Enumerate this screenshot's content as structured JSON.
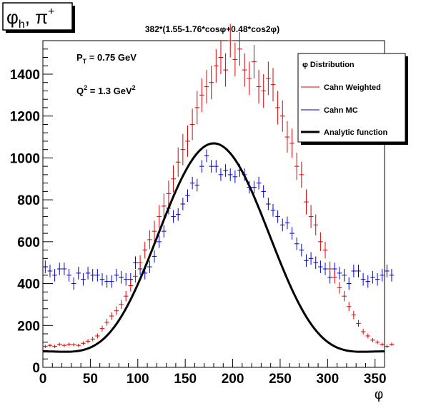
{
  "corner_label": {
    "main": "φ",
    "sub": "h",
    "rest": ", π",
    "sup": "+"
  },
  "chart_data": {
    "type": "scatter",
    "title": "382*(1.55-1.76*cosφ+0.48*cos2φ)",
    "xlabel": "φ",
    "ylabel": "",
    "xlim": [
      0,
      360
    ],
    "ylim": [
      0,
      1560
    ],
    "x_ticks": [
      0,
      50,
      100,
      150,
      200,
      250,
      300,
      350
    ],
    "y_ticks": [
      0,
      200,
      400,
      600,
      800,
      1000,
      1200,
      1400
    ],
    "annotations": [
      {
        "base": "P",
        "sub": "T",
        "rest": " = 0.75 GeV"
      },
      {
        "base": "Q",
        "sup": "2",
        "rest": " = 1.3 GeV",
        "sup2": "2"
      }
    ],
    "legend": {
      "placement": "top-right",
      "header": "φ Distribution",
      "entries": [
        "Cahn Weighted",
        "Cahn MC",
        "Analytic function"
      ]
    },
    "colors": {
      "weighted": "#dd0000",
      "mc": "#0000cc",
      "analytic": "#000000"
    },
    "function": {
      "scale": 382,
      "a": 1.55,
      "b": -1.76,
      "c": 0.48
    },
    "series": [
      {
        "name": "Cahn Weighted",
        "x_step": 5,
        "x_start": 2.5,
        "values": [
          100,
          105,
          100,
          110,
          105,
          110,
          108,
          105,
          115,
          125,
          135,
          150,
          185,
          215,
          245,
          270,
          300,
          340,
          390,
          435,
          500,
          560,
          610,
          650,
          720,
          770,
          830,
          900,
          980,
          1040,
          1080,
          1160,
          1240,
          1300,
          1340,
          1360,
          1440,
          1480,
          1420,
          1560,
          1470,
          1520,
          1420,
          1380,
          1460,
          1340,
          1320,
          1380,
          1350,
          1240,
          1200,
          1100,
          1070,
          960,
          920,
          790,
          720,
          680,
          600,
          560,
          470,
          430,
          380,
          340,
          290,
          250,
          210,
          170,
          150,
          130,
          120,
          110,
          100,
          110
        ],
        "errors": [
          8,
          8,
          8,
          8,
          8,
          8,
          8,
          8,
          9,
          10,
          11,
          12,
          14,
          16,
          18,
          20,
          22,
          25,
          28,
          30,
          35,
          40,
          45,
          50,
          55,
          60,
          62,
          65,
          70,
          75,
          75,
          75,
          80,
          80,
          80,
          80,
          80,
          80,
          80,
          80,
          80,
          80,
          80,
          80,
          80,
          80,
          80,
          80,
          80,
          80,
          75,
          75,
          70,
          65,
          62,
          60,
          55,
          50,
          45,
          40,
          35,
          30,
          28,
          25,
          22,
          20,
          16,
          14,
          12,
          10,
          9,
          8,
          8,
          8
        ]
      },
      {
        "name": "Cahn MC",
        "x_step": 5,
        "x_start": 2.5,
        "values": [
          480,
          460,
          440,
          470,
          470,
          440,
          400,
          450,
          420,
          450,
          440,
          440,
          420,
          410,
          410,
          440,
          430,
          420,
          420,
          500,
          470,
          450,
          480,
          530,
          600,
          650,
          760,
          720,
          730,
          780,
          820,
          880,
          870,
          960,
          1010,
          960,
          960,
          920,
          940,
          920,
          910,
          940,
          920,
          860,
          860,
          880,
          840,
          780,
          750,
          720,
          680,
          690,
          640,
          590,
          560,
          510,
          520,
          500,
          480,
          470,
          430,
          470,
          450,
          440,
          400,
          460,
          460,
          420,
          410,
          430,
          420,
          440,
          460,
          440
        ],
        "errors": [
          30,
          30,
          30,
          30,
          30,
          30,
          30,
          30,
          30,
          30,
          30,
          30,
          30,
          30,
          30,
          30,
          30,
          30,
          30,
          30,
          30,
          30,
          30,
          30,
          30,
          30,
          30,
          30,
          30,
          30,
          30,
          30,
          30,
          30,
          30,
          30,
          30,
          30,
          30,
          30,
          30,
          30,
          30,
          30,
          30,
          30,
          30,
          30,
          30,
          30,
          30,
          30,
          30,
          30,
          30,
          30,
          30,
          30,
          30,
          30,
          30,
          30,
          30,
          30,
          30,
          30,
          30,
          30,
          30,
          30,
          30,
          30,
          30,
          30
        ]
      },
      {
        "name": "Analytic function",
        "source": "function"
      }
    ]
  }
}
